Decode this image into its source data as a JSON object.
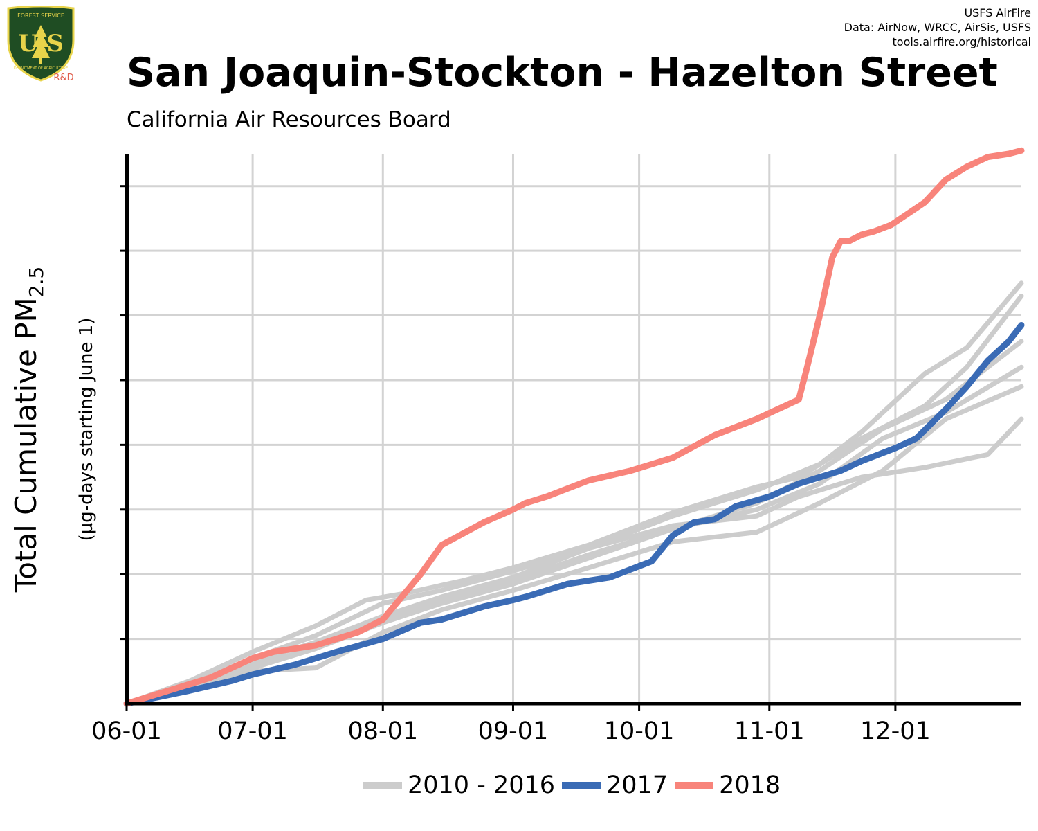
{
  "header": {
    "title": "San Joaquin-Stockton - Hazelton Street",
    "subtitle": "California Air Resources Board",
    "credits": [
      "USFS AirFire",
      "Data: AirNow, WRCC, AirSis, USFS",
      "tools.airfire.org/historical"
    ]
  },
  "logo": {
    "name": "usfs-shield-logo",
    "top_text": "FOREST SERVICE",
    "letters": "U S",
    "bottom_text": "DEPARTMENT OF AGRICULTURE",
    "badge": "R&D",
    "colors": {
      "shield": "#1f4d23",
      "gold": "#e8d44a",
      "badge": "#e0614f"
    }
  },
  "chart_data": {
    "type": "line",
    "ylabel_main": "Total Cumulative PM",
    "ylabel_sub": "2.5",
    "ylabel_units": "(µg-days starting June 1)",
    "xlabel": "",
    "x_ticks": [
      "06-01",
      "07-01",
      "08-01",
      "09-01",
      "10-01",
      "11-01",
      "12-01"
    ],
    "x_tick_days": [
      0,
      30,
      61,
      92,
      122,
      153,
      183
    ],
    "xlim": [
      0,
      213
    ],
    "ylim": [
      0,
      8.5
    ],
    "y_tick_count": 8,
    "grid": true,
    "legend": "bottom",
    "colors": {
      "background": "#cccccc",
      "y2017": "#3a6bb5",
      "y2018": "#f8847b",
      "grid": "#d3d3d3"
    },
    "series": [
      {
        "name": "2010 - 2016",
        "group": "background",
        "x": [
          0,
          15,
          30,
          45,
          57,
          66,
          80,
          92,
          110,
          130,
          150,
          160,
          175,
          190,
          200,
          213
        ],
        "y": [
          0,
          0.35,
          0.8,
          1.2,
          1.6,
          1.7,
          1.9,
          2.1,
          2.45,
          2.95,
          3.35,
          3.5,
          4.1,
          4.6,
          5.2,
          6.3
        ]
      },
      {
        "name": "",
        "group": "background",
        "x": [
          0,
          15,
          30,
          45,
          61,
          75,
          92,
          110,
          130,
          150,
          165,
          175,
          190,
          200,
          213
        ],
        "y": [
          0,
          0.3,
          0.65,
          0.95,
          1.35,
          1.65,
          1.95,
          2.4,
          2.9,
          3.3,
          3.7,
          4.2,
          5.1,
          5.5,
          6.5
        ]
      },
      {
        "name": "",
        "group": "background",
        "x": [
          0,
          15,
          30,
          45,
          61,
          75,
          92,
          110,
          130,
          150,
          165,
          180,
          195,
          213
        ],
        "y": [
          0,
          0.3,
          0.6,
          0.85,
          1.3,
          1.6,
          1.9,
          2.3,
          2.7,
          3.1,
          3.6,
          4.25,
          4.7,
          5.6
        ]
      },
      {
        "name": "",
        "group": "background",
        "x": [
          0,
          15,
          30,
          45,
          61,
          75,
          92,
          110,
          130,
          150,
          165,
          180,
          195,
          213
        ],
        "y": [
          0,
          0.3,
          0.55,
          0.85,
          1.25,
          1.55,
          1.85,
          2.25,
          2.7,
          3.0,
          3.4,
          4.1,
          4.5,
          5.2
        ]
      },
      {
        "name": "",
        "group": "background",
        "x": [
          0,
          15,
          30,
          45,
          61,
          75,
          92,
          110,
          130,
          150,
          165,
          180,
          195,
          213
        ],
        "y": [
          0,
          0.25,
          0.5,
          0.55,
          1.1,
          1.45,
          1.75,
          2.1,
          2.5,
          2.65,
          3.1,
          3.6,
          4.4,
          4.9
        ]
      },
      {
        "name": "",
        "group": "background",
        "x": [
          0,
          15,
          30,
          45,
          61,
          75,
          92,
          110,
          130,
          150,
          160,
          175,
          190,
          205,
          213
        ],
        "y": [
          0,
          0.3,
          0.7,
          1.05,
          1.55,
          1.75,
          2.05,
          2.4,
          2.75,
          2.9,
          3.2,
          3.5,
          3.65,
          3.85,
          4.4
        ]
      },
      {
        "name": "2017",
        "group": "y2017",
        "x": [
          0,
          15,
          25,
          30,
          40,
          50,
          61,
          70,
          75,
          85,
          92,
          95,
          105,
          115,
          125,
          130,
          135,
          140,
          145,
          153,
          160,
          170,
          175,
          183,
          188,
          195,
          200,
          205,
          210,
          213
        ],
        "y": [
          0,
          0.2,
          0.35,
          0.45,
          0.6,
          0.8,
          1.0,
          1.25,
          1.3,
          1.5,
          1.6,
          1.65,
          1.85,
          1.95,
          2.2,
          2.6,
          2.8,
          2.85,
          3.05,
          3.2,
          3.4,
          3.6,
          3.75,
          3.95,
          4.1,
          4.55,
          4.9,
          5.3,
          5.6,
          5.85
        ]
      },
      {
        "name": "2018",
        "group": "y2018",
        "x": [
          0,
          10,
          20,
          30,
          35,
          45,
          55,
          61,
          70,
          75,
          85,
          92,
          95,
          100,
          110,
          120,
          130,
          140,
          150,
          155,
          160,
          162,
          165,
          168,
          170,
          172,
          175,
          178,
          182,
          190,
          195,
          200,
          205,
          210,
          213
        ],
        "y": [
          0,
          0.2,
          0.4,
          0.7,
          0.8,
          0.9,
          1.1,
          1.3,
          2.0,
          2.45,
          2.8,
          3.0,
          3.1,
          3.2,
          3.45,
          3.6,
          3.8,
          4.15,
          4.4,
          4.55,
          4.7,
          5.2,
          6.0,
          6.9,
          7.15,
          7.15,
          7.25,
          7.3,
          7.4,
          7.75,
          8.1,
          8.3,
          8.45,
          8.5,
          8.55
        ]
      }
    ]
  },
  "legend": {
    "items": [
      {
        "label": "2010 - 2016",
        "color": "#cccccc"
      },
      {
        "label": "2017",
        "color": "#3a6bb5"
      },
      {
        "label": "2018",
        "color": "#f8847b"
      }
    ]
  }
}
